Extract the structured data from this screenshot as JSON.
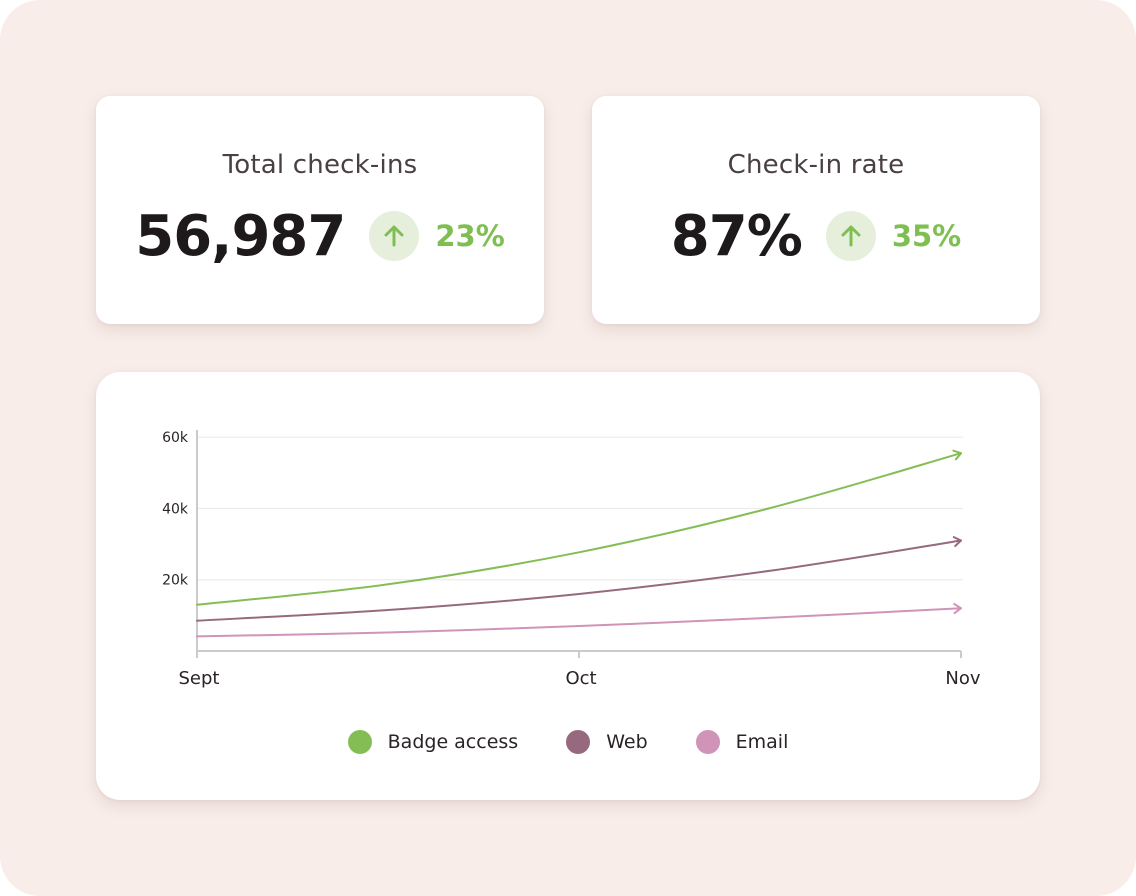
{
  "stats": [
    {
      "title": "Total check-ins",
      "value": "56,987",
      "trend_direction": "up",
      "change": "23%",
      "icon": "arrow-up-icon"
    },
    {
      "title": "Check-in rate",
      "value": "87%",
      "trend_direction": "up",
      "change": "35%",
      "icon": "arrow-up-icon"
    }
  ],
  "colors": {
    "background": "#f8ede9",
    "trend_up": "#7fbf52",
    "trend_badge": "#e6efdc",
    "gridline": "#ece7e7",
    "axis": "#cfcaca"
  },
  "chart_data": {
    "type": "line",
    "title": "",
    "xlabel": "",
    "ylabel": "",
    "categories": [
      "Sept",
      "Oct",
      "Nov"
    ],
    "y_ticks": [
      {
        "value": 20000,
        "label": "20k"
      },
      {
        "value": 40000,
        "label": "40k"
      },
      {
        "value": 60000,
        "label": "60k"
      }
    ],
    "ylim": [
      0,
      62000
    ],
    "grid": true,
    "legend_position": "bottom-center",
    "series": [
      {
        "name": "Badge access",
        "color": "#85bd55",
        "x": [
          0,
          0.25,
          0.5,
          0.75,
          1
        ],
        "values": [
          13000,
          18700,
          27700,
          40100,
          55500
        ]
      },
      {
        "name": "Web",
        "color": "#97697f",
        "x": [
          0,
          0.25,
          0.5,
          0.75,
          1
        ],
        "values": [
          8500,
          11500,
          16000,
          22500,
          31000
        ]
      },
      {
        "name": "Email",
        "color": "#cf94b7",
        "x": [
          0,
          0.25,
          0.5,
          0.75,
          1
        ],
        "values": [
          4100,
          5200,
          7000,
          9300,
          12000
        ]
      }
    ]
  }
}
